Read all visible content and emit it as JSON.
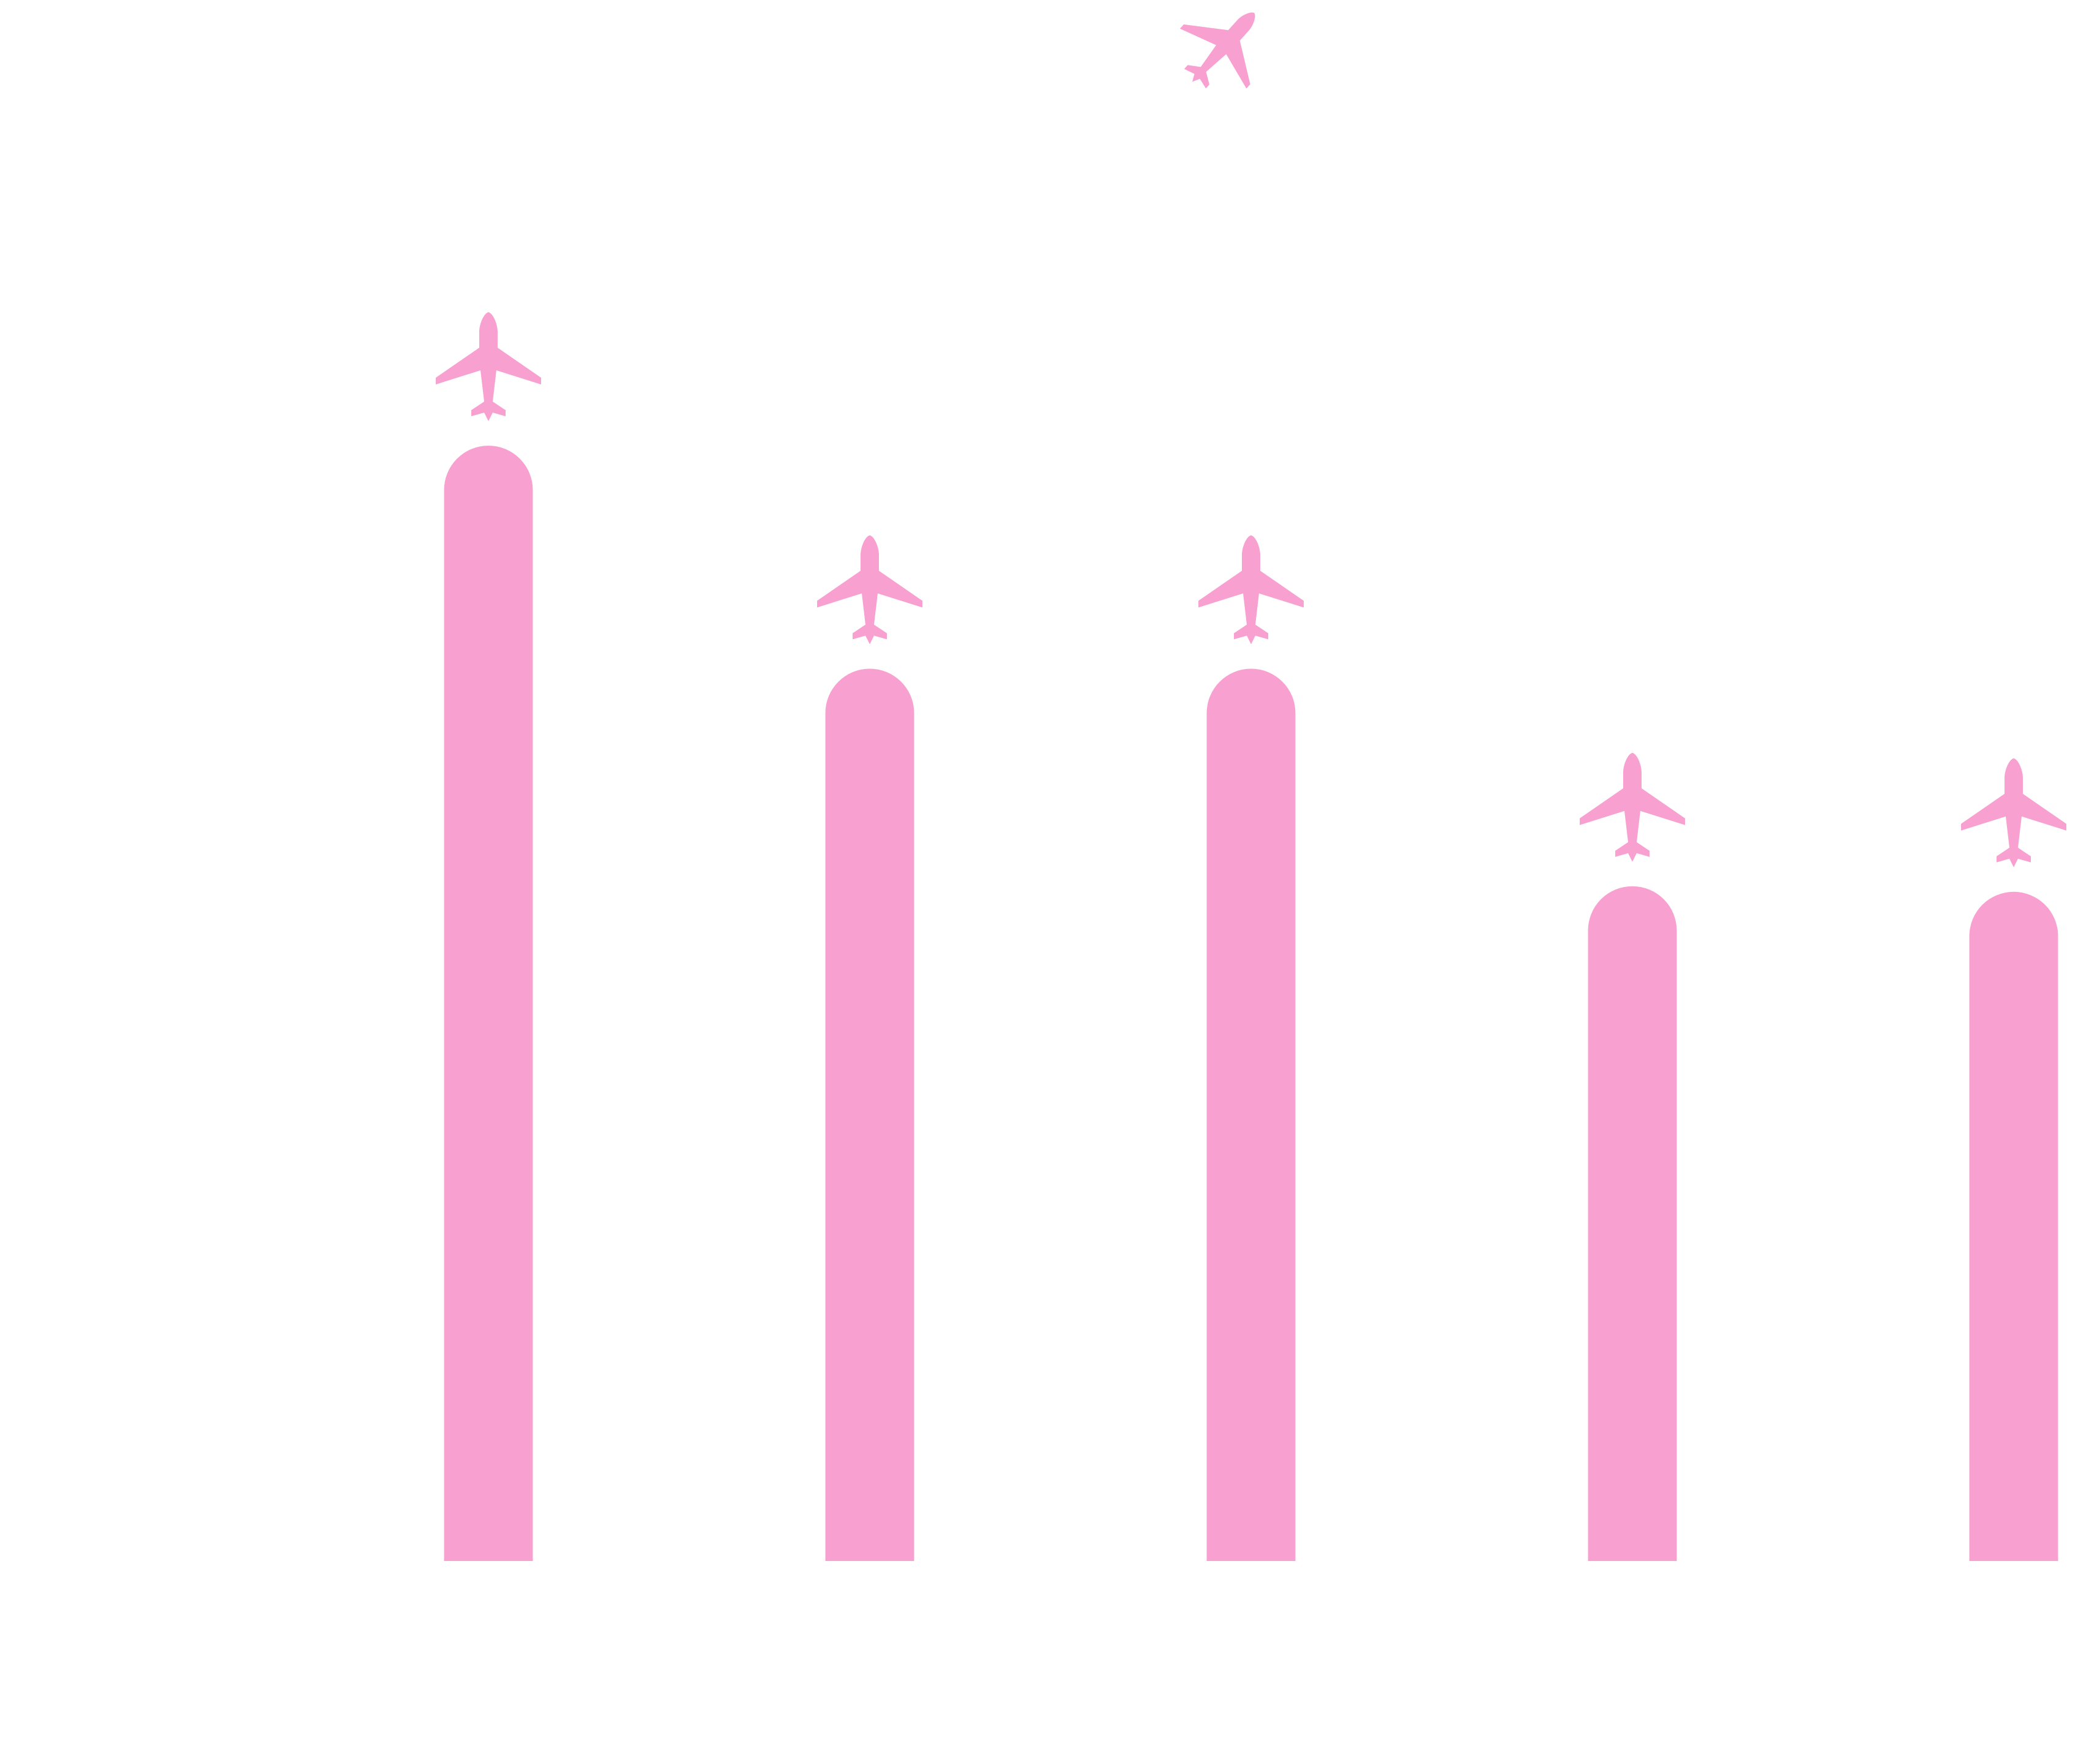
{
  "chart_data": {
    "type": "bar",
    "categories": [
      "",
      "",
      "",
      "",
      ""
    ],
    "values": [
      100,
      80,
      80,
      60.5,
      60
    ],
    "ylim": [
      0,
      100
    ],
    "grid": false,
    "bar_style": "rounded-top pictorial pillar",
    "marker_icon": "airplane-icon",
    "decorative_icon": "airplane-icon",
    "color": "#f8a1d1"
  }
}
